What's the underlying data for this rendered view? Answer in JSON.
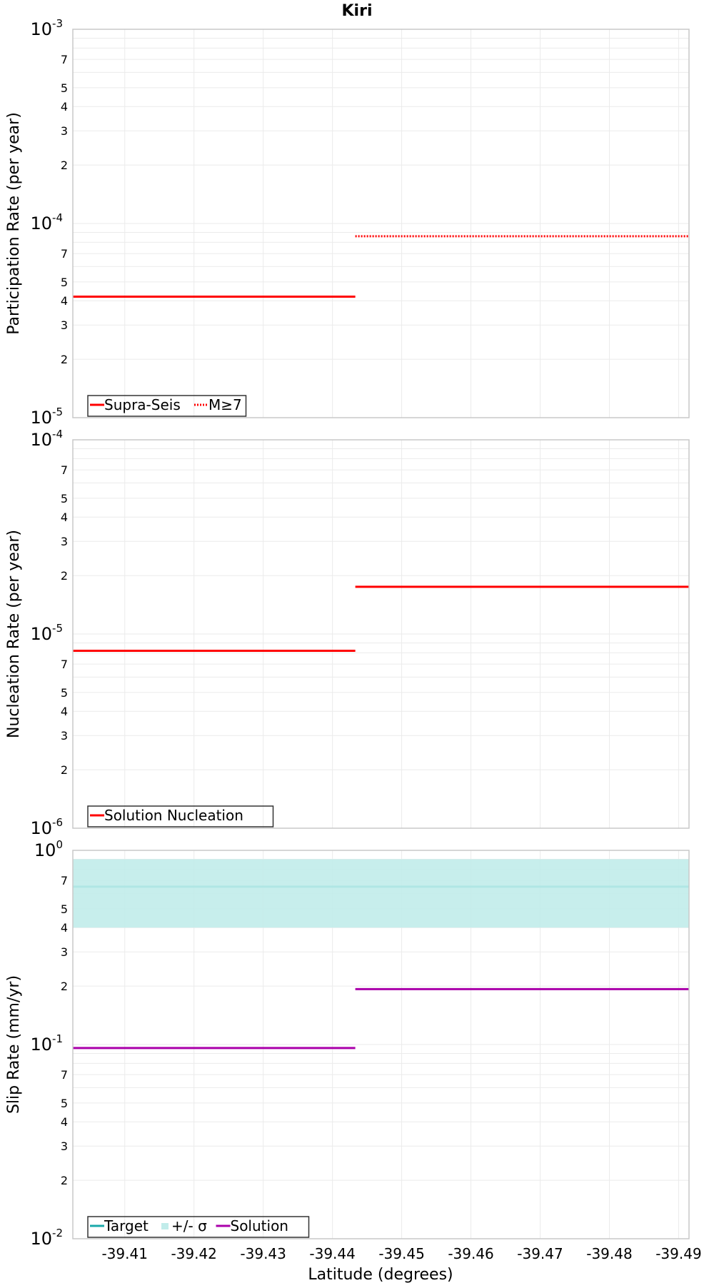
{
  "title": "Kiri",
  "xlabel": "Latitude (degrees)",
  "x_ticks": [
    "-39.41",
    "-39.42",
    "-39.43",
    "-39.44",
    "-39.45",
    "-39.46",
    "-39.47",
    "-39.48",
    "-39.49"
  ],
  "colors": {
    "supra_seis": "#ff0000",
    "nucleation": "#ff0000",
    "target": "#1aa9aa",
    "sigma_band": "#c1ecea",
    "solution": "#aa00aa",
    "grid": "#ebebeb",
    "frame": "#c8c8c8"
  },
  "chart_data": [
    {
      "type": "line",
      "ylabel": "Participation Rate (per year)",
      "yscale": "log",
      "ylim": [
        1e-05,
        0.001
      ],
      "decade_labels": [
        {
          "base": "10",
          "exp": "-3"
        },
        {
          "base": "10",
          "exp": "-4"
        },
        {
          "base": "10",
          "exp": "-5"
        }
      ],
      "minor_labels": [
        "7",
        "5",
        "4",
        "3",
        "2"
      ],
      "xlim": [
        -39.4025,
        -39.4915
      ],
      "grid": true,
      "legend_position": "bottom-left",
      "series": [
        {
          "name": "Supra-Seis",
          "style": "solid",
          "x": [
            -39.4025,
            -39.4433,
            -39.4433,
            -39.4915
          ],
          "y": [
            4.2e-05,
            4.2e-05,
            null,
            null
          ]
        },
        {
          "name": "M≥7",
          "style": "dotted",
          "x": [
            -39.4433,
            -39.4915
          ],
          "y": [
            8.6e-05,
            8.6e-05
          ]
        }
      ]
    },
    {
      "type": "line",
      "ylabel": "Nucleation Rate (per year)",
      "yscale": "log",
      "ylim": [
        1e-06,
        0.0001
      ],
      "decade_labels": [
        {
          "base": "10",
          "exp": "-4"
        },
        {
          "base": "10",
          "exp": "-5"
        },
        {
          "base": "10",
          "exp": "-6"
        }
      ],
      "minor_labels": [
        "7",
        "5",
        "4",
        "3",
        "2"
      ],
      "xlim": [
        -39.4025,
        -39.4915
      ],
      "grid": true,
      "legend_position": "bottom-left",
      "series": [
        {
          "name": "Solution Nucleation",
          "style": "solid",
          "segments": [
            {
              "x": [
                -39.4025,
                -39.4433
              ],
              "y": [
                8.2e-06,
                8.2e-06
              ]
            },
            {
              "x": [
                -39.4433,
                -39.4915
              ],
              "y": [
                1.75e-05,
                1.75e-05
              ]
            }
          ]
        }
      ]
    },
    {
      "type": "line",
      "ylabel": "Slip Rate (mm/yr)",
      "yscale": "log",
      "ylim": [
        0.01,
        1
      ],
      "decade_labels": [
        {
          "base": "10",
          "exp": "0"
        },
        {
          "base": "10",
          "exp": "-1"
        },
        {
          "base": "10",
          "exp": "-2"
        }
      ],
      "minor_labels": [
        "7",
        "5",
        "4",
        "3",
        "2"
      ],
      "xlim": [
        -39.4025,
        -39.4915
      ],
      "grid": true,
      "legend_position": "bottom-left",
      "series": [
        {
          "name": "Target",
          "style": "solid",
          "segments": [
            {
              "x": [
                -39.4025,
                -39.4915
              ],
              "y": [
                0.65,
                0.65
              ]
            }
          ]
        },
        {
          "name": "+/- σ",
          "style": "band",
          "band": {
            "x": [
              -39.4025,
              -39.4915
            ],
            "low": 0.4,
            "high": 0.9
          }
        },
        {
          "name": "Solution",
          "style": "solid",
          "segments": [
            {
              "x": [
                -39.4025,
                -39.4433
              ],
              "y": [
                0.096,
                0.096
              ]
            },
            {
              "x": [
                -39.4433,
                -39.4915
              ],
              "y": [
                0.193,
                0.193
              ]
            }
          ]
        }
      ]
    }
  ]
}
